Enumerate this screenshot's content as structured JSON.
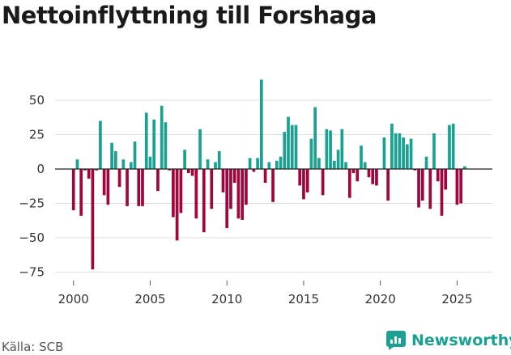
{
  "chart_data": {
    "type": "bar",
    "title": "Nettoinflyttning till Forshaga",
    "xlabel": "",
    "ylabel": "",
    "ylim": [
      -80,
      70
    ],
    "xlim": [
      1998.8,
      2027.3
    ],
    "yticks": [
      50,
      25,
      0,
      -25,
      -50,
      -75
    ],
    "xticks": [
      2000,
      2005,
      2010,
      2015,
      2020,
      2025
    ],
    "grid": true,
    "positive_color": "#1aa192",
    "negative_color": "#a0053e",
    "x": [
      2000.0,
      2000.25,
      2000.5,
      2000.75,
      2001.0,
      2001.25,
      2001.5,
      2001.75,
      2002.0,
      2002.25,
      2002.5,
      2002.75,
      2003.0,
      2003.25,
      2003.5,
      2003.75,
      2004.0,
      2004.25,
      2004.5,
      2004.75,
      2005.0,
      2005.25,
      2005.5,
      2005.75,
      2006.0,
      2006.25,
      2006.5,
      2006.75,
      2007.0,
      2007.25,
      2007.5,
      2007.75,
      2008.0,
      2008.25,
      2008.5,
      2008.75,
      2009.0,
      2009.25,
      2009.5,
      2009.75,
      2010.0,
      2010.25,
      2010.5,
      2010.75,
      2011.0,
      2011.25,
      2011.5,
      2011.75,
      2012.0,
      2012.25,
      2012.5,
      2012.75,
      2013.0,
      2013.25,
      2013.5,
      2013.75,
      2014.0,
      2014.25,
      2014.5,
      2014.75,
      2015.0,
      2015.25,
      2015.5,
      2015.75,
      2016.0,
      2016.25,
      2016.5,
      2016.75,
      2017.0,
      2017.25,
      2017.5,
      2017.75,
      2018.0,
      2018.25,
      2018.5,
      2018.75,
      2019.0,
      2019.25,
      2019.5,
      2019.75,
      2020.0,
      2020.25,
      2020.5,
      2020.75,
      2021.0,
      2021.25,
      2021.5,
      2021.75,
      2022.0,
      2022.25,
      2022.5,
      2022.75,
      2023.0,
      2023.25,
      2023.5,
      2023.75,
      2024.0,
      2024.25,
      2024.5,
      2024.75,
      2025.0,
      2025.25,
      2025.5
    ],
    "values": [
      -30,
      7,
      -34,
      -1,
      -7,
      -73,
      -1,
      35,
      -19,
      -26,
      19,
      13,
      -13,
      7,
      -27,
      5,
      20,
      -27,
      -27,
      41,
      9,
      36,
      -16,
      46,
      34,
      -1,
      -35,
      -52,
      -32,
      14,
      -3,
      -5,
      -36,
      29,
      -46,
      7,
      -29,
      5,
      13,
      -17,
      -43,
      -29,
      -10,
      -36,
      -37,
      -26,
      8,
      -2,
      8,
      65,
      -10,
      5,
      -24,
      6,
      9,
      27,
      38,
      32,
      32,
      -12,
      -22,
      -17,
      22,
      45,
      8,
      -19,
      29,
      28,
      6,
      14,
      29,
      5,
      -21,
      -3,
      -9,
      17,
      5,
      -6,
      -11,
      -12,
      0,
      23,
      -23,
      33,
      26,
      26,
      23,
      18,
      22,
      -1,
      -28,
      -23,
      9,
      -29,
      26,
      -9,
      -34,
      -15,
      32,
      33,
      -26,
      -25,
      2
    ]
  },
  "source": "Källa: SCB",
  "brand": {
    "name": "Newsworthy",
    "icon": "newsworthy-logo-icon"
  }
}
